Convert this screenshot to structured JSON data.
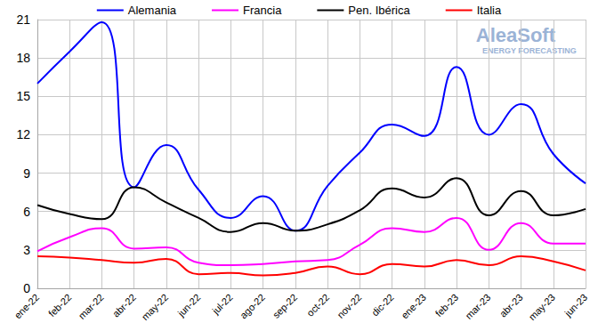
{
  "chart_data": {
    "type": "line",
    "categories": [
      "ene-22",
      "feb-22",
      "mar-22",
      "abr-22",
      "may-22",
      "jun-22",
      "jul-22",
      "ago-22",
      "sep-22",
      "oct-22",
      "nov-22",
      "dic-22",
      "ene-23",
      "feb-23",
      "mar-23",
      "abr-23",
      "may-23",
      "jun-23"
    ],
    "series": [
      {
        "name": "Alemania",
        "color": "#0000ff",
        "values": [
          16,
          18.5,
          20.8,
          7.9,
          11.2,
          7.7,
          5.5,
          7.2,
          4.5,
          8,
          10.6,
          12.8,
          11.9,
          17.3,
          12,
          14.4,
          10.5,
          8.2
        ]
      },
      {
        "name": "Francia",
        "color": "#ff00ff",
        "values": [
          2.9,
          4.0,
          4.7,
          3.1,
          3.2,
          2.0,
          1.8,
          1.9,
          2.1,
          2.2,
          3.4,
          4.7,
          4.4,
          5.5,
          3.0,
          5.1,
          3.5,
          3.5
        ]
      },
      {
        "name": "Pen. Ibérica",
        "color": "#000000",
        "values": [
          6.5,
          5.8,
          5.4,
          7.9,
          6.7,
          5.5,
          4.4,
          5.1,
          4.5,
          5.0,
          6.1,
          7.8,
          7.1,
          8.6,
          5.7,
          7.6,
          5.7,
          6.2
        ]
      },
      {
        "name": "Italia",
        "color": "#ff0000",
        "values": [
          2.5,
          2.4,
          2.2,
          2.0,
          2.3,
          1.1,
          1.2,
          1.0,
          1.2,
          1.7,
          1.1,
          1.9,
          1.7,
          2.2,
          1.8,
          2.5,
          2.1,
          1.4
        ]
      }
    ],
    "ylim": [
      0,
      21
    ],
    "yticks": [
      0,
      3,
      6,
      9,
      12,
      15,
      18,
      21
    ],
    "grid": true,
    "legend": "top",
    "line_style": "smooth",
    "annotations": [
      "AleaSoft",
      "ENERGY FORECASTING"
    ]
  }
}
